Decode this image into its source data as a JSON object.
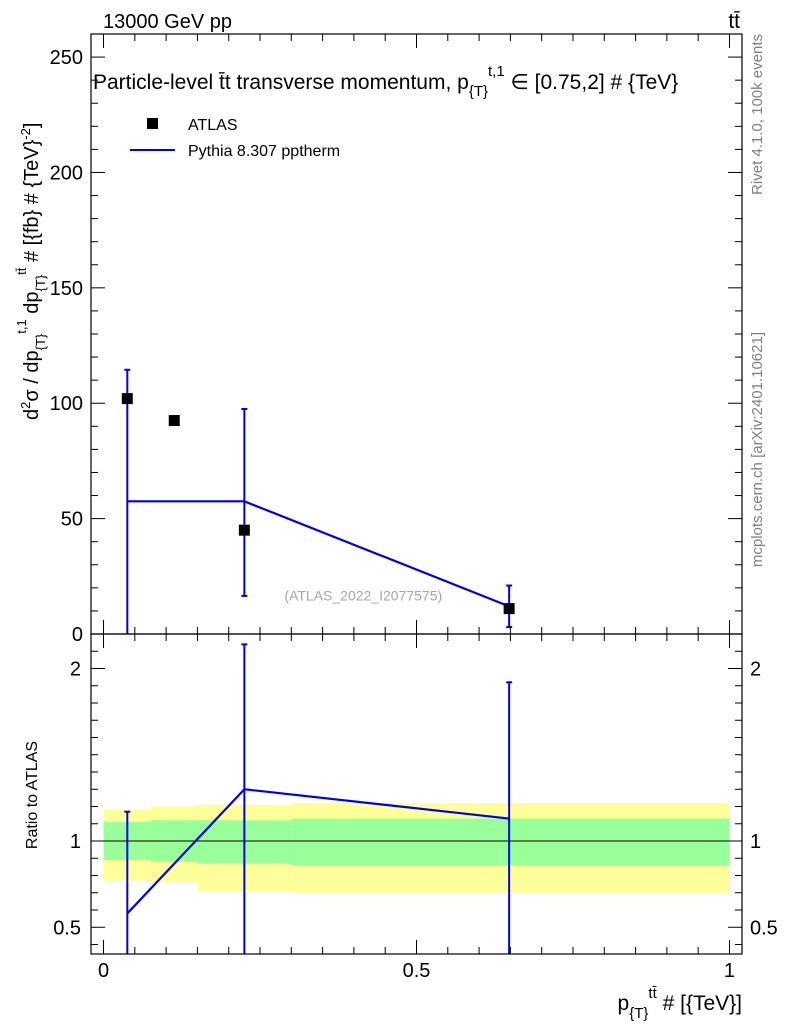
{
  "header": {
    "left": "13000 GeV pp",
    "right": "tt̄"
  },
  "side_labels": {
    "rivet": "Rivet 4.1.0,  100k events",
    "mcplots": "mcplots.cern.ch [arXiv:2401.10621]"
  },
  "colors": {
    "data": "#000000",
    "mc": "#0000ee",
    "band_inner": "#99ff99",
    "band_outer": "#ffff99"
  },
  "chart_data": [
    {
      "panel": "main",
      "type": "scatter",
      "title": "Particle-level t̄t transverse momentum, p_{T}^{t,1} ∈ [0.75,2] # {TeV}",
      "watermark": "(ATLAS_2022_I2077575)",
      "ylabel": "d²σ / dp_{T}^{t,1} dp_{T}^{tt̄} # [{fb} # {TeV}^-2]",
      "xlim": [
        -0.02,
        1.02
      ],
      "ylim": [
        0,
        260
      ],
      "yticks": [
        0,
        50,
        100,
        150,
        200,
        250
      ],
      "legend": {
        "position": "top-left",
        "entries": [
          "ATLAS",
          "Pythia 8.307 pptherm"
        ]
      },
      "series": [
        {
          "name": "ATLAS",
          "style": "markers",
          "points": [
            {
              "x": 0.038,
              "y": 102
            },
            {
              "x": 0.113,
              "y": 92.5
            },
            {
              "x": 0.225,
              "y": 45
            },
            {
              "x": 0.648,
              "y": 11
            }
          ]
        },
        {
          "name": "Pythia 8.307 pptherm",
          "style": "line",
          "points": [
            {
              "x": 0.038,
              "y": 57.5,
              "err_lo": 0,
              "err_hi": 114.5
            },
            {
              "x": 0.225,
              "y": 57.5,
              "err_lo": 16.5,
              "err_hi": 97.5
            },
            {
              "x": 0.648,
              "y": 12,
              "err_lo": 3,
              "err_hi": 21
            }
          ]
        }
      ]
    },
    {
      "panel": "ratio",
      "type": "line",
      "ylabel": "Ratio to ATLAS",
      "xlabel": "p_{T}^{tt̄} # [{TeV}]",
      "xlim": [
        -0.02,
        1.02
      ],
      "ylim": [
        0.345,
        2.2
      ],
      "xticks": [
        {
          "value": 0,
          "label": "0"
        },
        {
          "value": 0.5,
          "label": "0.5"
        },
        {
          "value": 1,
          "label": "1"
        }
      ],
      "yticks": [
        {
          "value": 0.5,
          "label": "0.5"
        },
        {
          "value": 1,
          "label": "1"
        },
        {
          "value": 2,
          "label": "2"
        }
      ],
      "bands": [
        {
          "x0": 0.0,
          "x1": 0.075,
          "inner": [
            0.89,
            1.11
          ],
          "outer": [
            0.77,
            1.18
          ]
        },
        {
          "x0": 0.075,
          "x1": 0.15,
          "inner": [
            0.88,
            1.12
          ],
          "outer": [
            0.76,
            1.2
          ]
        },
        {
          "x0": 0.15,
          "x1": 0.3,
          "inner": [
            0.87,
            1.12
          ],
          "outer": [
            0.71,
            1.21
          ]
        },
        {
          "x0": 0.3,
          "x1": 1.0,
          "inner": [
            0.86,
            1.13
          ],
          "outer": [
            0.7,
            1.22
          ]
        }
      ],
      "series": [
        {
          "name": "Pythia 8.307 pptherm",
          "points": [
            {
              "x": 0.038,
              "y": 0.58,
              "err_lo": 0.0,
              "err_hi": 1.17
            },
            {
              "x": 0.225,
              "y": 1.3,
              "err_lo": 0.0,
              "err_hi": 2.14
            },
            {
              "x": 0.648,
              "y": 1.13,
              "err_lo": 0.0,
              "err_hi": 1.92
            }
          ]
        }
      ]
    }
  ]
}
